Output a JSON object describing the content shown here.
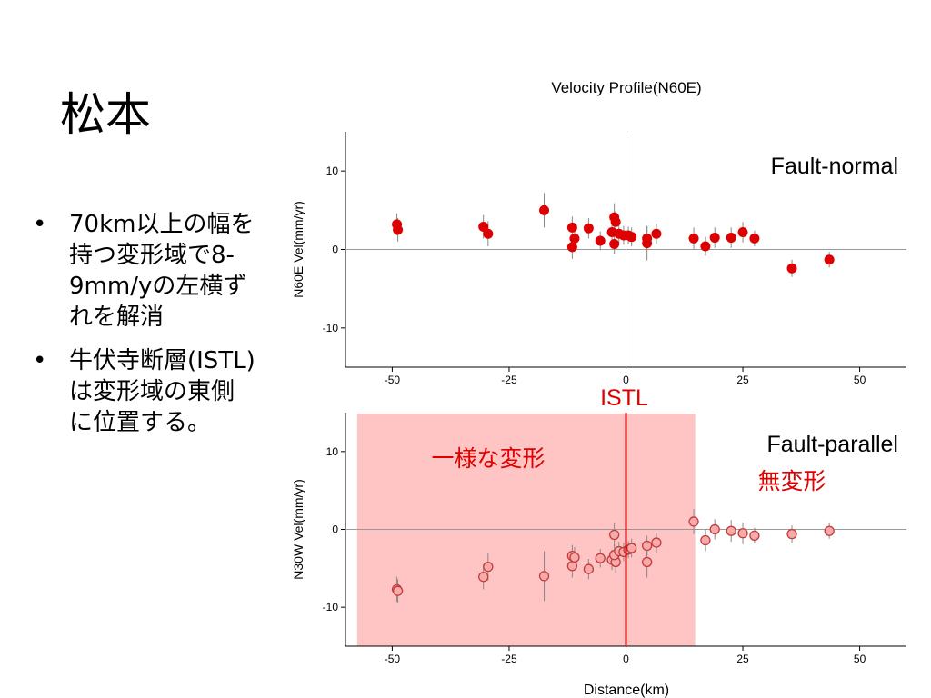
{
  "slide": {
    "title": "松本",
    "bullets": [
      "70km以上の幅を持つ変形域で8-9mm/yの左横ずれを解消",
      "牛伏寺断層(ISTL)は変形域の東側に位置する。"
    ]
  },
  "colors": {
    "marker": "#dd0000",
    "shade": "#ffc4c4",
    "annotation": "#e00000",
    "fault_line": "#cc0000"
  },
  "chart_data": [
    {
      "type": "scatter",
      "title": "Velocity Profile(N60E)",
      "ylabel": "N60E Vel(mm/yr)",
      "xlabel": "",
      "xlim": [
        -60,
        60
      ],
      "ylim": [
        -15,
        15
      ],
      "xticks": [
        -50,
        -25,
        0,
        25,
        50
      ],
      "yticks": [
        10,
        0,
        -10
      ],
      "label": "Fault-normal",
      "points": [
        {
          "x": -49,
          "y": 3.2,
          "e": 1.4
        },
        {
          "x": -48.8,
          "y": 2.5,
          "e": 1.5
        },
        {
          "x": -30.5,
          "y": 2.9,
          "e": 1.5
        },
        {
          "x": -29.5,
          "y": 2.0,
          "e": 1.6
        },
        {
          "x": -17.5,
          "y": 5.0,
          "e": 2.2
        },
        {
          "x": -11.5,
          "y": 2.8,
          "e": 1.4
        },
        {
          "x": -11.5,
          "y": 0.3,
          "e": 1.5
        },
        {
          "x": -11,
          "y": 1.4,
          "e": 1.3
        },
        {
          "x": -8,
          "y": 2.7,
          "e": 1.3
        },
        {
          "x": -5.5,
          "y": 1.1,
          "e": 1.2
        },
        {
          "x": -3,
          "y": 2.2,
          "e": 1.3
        },
        {
          "x": -2.5,
          "y": 4.1,
          "e": 1.8
        },
        {
          "x": -2.2,
          "y": 3.5,
          "e": 1.4
        },
        {
          "x": -2.5,
          "y": 0.7,
          "e": 1.3
        },
        {
          "x": -1.5,
          "y": 2.0,
          "e": 1.2
        },
        {
          "x": -0.5,
          "y": 1.8,
          "e": 1.2
        },
        {
          "x": 0.5,
          "y": 1.8,
          "e": 1.1
        },
        {
          "x": 1.2,
          "y": 1.6,
          "e": 1.2
        },
        {
          "x": 4.5,
          "y": 1.4,
          "e": 1.5
        },
        {
          "x": 4.5,
          "y": 0.8,
          "e": 2.2
        },
        {
          "x": 6.5,
          "y": 2.0,
          "e": 1.3
        },
        {
          "x": 14.5,
          "y": 1.4,
          "e": 1.4
        },
        {
          "x": 17,
          "y": 0.4,
          "e": 1.2
        },
        {
          "x": 19,
          "y": 1.5,
          "e": 1.3
        },
        {
          "x": 22.5,
          "y": 1.5,
          "e": 1.3
        },
        {
          "x": 25,
          "y": 2.2,
          "e": 1.3
        },
        {
          "x": 27.5,
          "y": 1.4,
          "e": 1.0
        },
        {
          "x": 35.5,
          "y": -2.4,
          "e": 1.1
        },
        {
          "x": 43.5,
          "y": -1.3,
          "e": 1.0
        }
      ]
    },
    {
      "type": "scatter",
      "title": "",
      "ylabel": "N30W Vel(mm/yr)",
      "xlabel": "Distance(km)",
      "xlim": [
        -60,
        60
      ],
      "ylim": [
        -15,
        15
      ],
      "xticks": [
        -50,
        -25,
        0,
        25,
        50
      ],
      "yticks": [
        10,
        0,
        -10
      ],
      "label": "Fault-parallel",
      "fault_label": "ISTL",
      "fault_x": 0,
      "shade_region": {
        "x_from": -57.5,
        "x_to": 14.8,
        "label": "一様な変形"
      },
      "undeformed_label": "無変形",
      "points": [
        {
          "x": -49,
          "y": -7.7,
          "e": 1.6
        },
        {
          "x": -48.8,
          "y": -7.9,
          "e": 1.5
        },
        {
          "x": -30.5,
          "y": -6.1,
          "e": 1.6
        },
        {
          "x": -29.5,
          "y": -4.8,
          "e": 1.8
        },
        {
          "x": -17.5,
          "y": -6.0,
          "e": 3.2
        },
        {
          "x": -11.5,
          "y": -3.4,
          "e": 1.4
        },
        {
          "x": -11.5,
          "y": -4.7,
          "e": 1.5
        },
        {
          "x": -11,
          "y": -3.6,
          "e": 1.3
        },
        {
          "x": -8,
          "y": -5.1,
          "e": 1.3
        },
        {
          "x": -5.5,
          "y": -3.7,
          "e": 1.2
        },
        {
          "x": -3,
          "y": -3.9,
          "e": 1.3
        },
        {
          "x": -2.5,
          "y": -0.7,
          "e": 1.5
        },
        {
          "x": -2.2,
          "y": -4.2,
          "e": 1.4
        },
        {
          "x": -2.5,
          "y": -3.3,
          "e": 1.3
        },
        {
          "x": -1.5,
          "y": -2.8,
          "e": 1.2
        },
        {
          "x": -0.5,
          "y": -2.9,
          "e": 1.2
        },
        {
          "x": 0.5,
          "y": -2.6,
          "e": 1.1
        },
        {
          "x": 1.2,
          "y": -2.4,
          "e": 1.2
        },
        {
          "x": 4.5,
          "y": -2.1,
          "e": 1.3
        },
        {
          "x": 4.5,
          "y": -4.2,
          "e": 2.0
        },
        {
          "x": 6.5,
          "y": -1.7,
          "e": 1.3
        },
        {
          "x": 14.5,
          "y": 1.0,
          "e": 1.6
        },
        {
          "x": 17,
          "y": -1.4,
          "e": 1.4
        },
        {
          "x": 19,
          "y": 0.0,
          "e": 1.3
        },
        {
          "x": 22.5,
          "y": -0.2,
          "e": 1.4
        },
        {
          "x": 25,
          "y": -0.5,
          "e": 1.4
        },
        {
          "x": 27.5,
          "y": -0.8,
          "e": 1.0
        },
        {
          "x": 35.5,
          "y": -0.6,
          "e": 1.1
        },
        {
          "x": 43.5,
          "y": -0.2,
          "e": 1.0
        }
      ]
    }
  ]
}
